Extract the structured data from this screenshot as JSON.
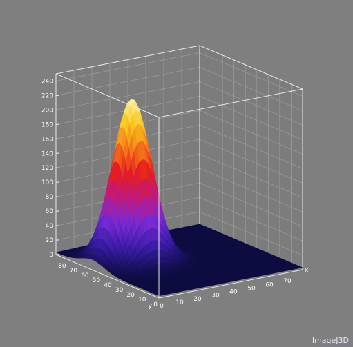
{
  "app": {
    "watermark": "ImageJ3D"
  },
  "colors": {
    "background": "#7f7f7f",
    "box_lines": "#e8e8e8",
    "grid_lines": "#9a9a9a",
    "tick_text": "#ffffff",
    "floor": "#1c1c46"
  },
  "chart_data": {
    "type": "surface3d",
    "title": "",
    "xlabel": "x",
    "ylabel": "y",
    "zlabel": "",
    "x_ticks": [
      0,
      10,
      20,
      30,
      40,
      50,
      60,
      70
    ],
    "y_ticks": [
      0,
      10,
      20,
      30,
      40,
      50,
      60,
      70,
      80
    ],
    "z_ticks": [
      0,
      20,
      40,
      60,
      80,
      100,
      120,
      140,
      160,
      180,
      200,
      220,
      240
    ],
    "xlim": [
      0,
      80
    ],
    "ylim": [
      0,
      90
    ],
    "zlim": [
      0,
      250
    ],
    "surface": {
      "shape": "gaussian",
      "peak_x": 22,
      "peak_y": 58,
      "peak_z": 226,
      "sigma_x": 9,
      "sigma_y": 10,
      "baseline": 3
    },
    "colormap": [
      "#0c0c40",
      "#3a1ca6",
      "#7a2ad6",
      "#c2187a",
      "#e61e1e",
      "#f5781a",
      "#f8c81c",
      "#fff2a0"
    ],
    "grid": true
  }
}
